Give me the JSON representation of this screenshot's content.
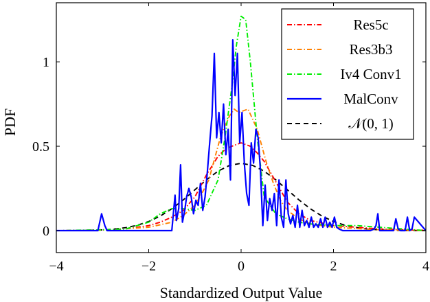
{
  "chart_data": {
    "type": "line",
    "title": "",
    "xlabel": "Standardized Output Value",
    "ylabel": "PDF",
    "xlim": [
      -4,
      4
    ],
    "ylim": [
      -0.13,
      1.35
    ],
    "xticks": [
      -4,
      -2,
      0,
      2,
      4
    ],
    "yticks": [
      0,
      0.5,
      1
    ],
    "x_tick_labels": [
      "−4",
      "−2",
      "0",
      "2",
      "4"
    ],
    "y_tick_labels": [
      "0",
      "0.5",
      "1"
    ],
    "grid": false,
    "legend_position": "top-right",
    "series": [
      {
        "name": "Res5c",
        "color": "#ff0000",
        "dash": "dashdot",
        "x": [
          -4,
          -3.5,
          -3,
          -2.5,
          -2,
          -1.75,
          -1.5,
          -1.25,
          -1,
          -0.75,
          -0.5,
          -0.35,
          -0.2,
          -0.1,
          0,
          0.1,
          0.2,
          0.35,
          0.5,
          0.75,
          1,
          1.25,
          1.5,
          2,
          2.5,
          3,
          3.5,
          4
        ],
        "y": [
          0,
          0.002,
          0.005,
          0.01,
          0.03,
          0.05,
          0.08,
          0.12,
          0.2,
          0.33,
          0.44,
          0.48,
          0.5,
          0.51,
          0.52,
          0.51,
          0.5,
          0.46,
          0.41,
          0.29,
          0.17,
          0.1,
          0.06,
          0.03,
          0.02,
          0.01,
          0.005,
          0.002
        ]
      },
      {
        "name": "Res3b3",
        "color": "#ff8000",
        "dash": "dashdot",
        "x": [
          -4,
          -3,
          -2,
          -1.5,
          -1.25,
          -1,
          -0.85,
          -0.7,
          -0.55,
          -0.45,
          -0.35,
          -0.25,
          -0.15,
          -0.05,
          0.05,
          0.15,
          0.25,
          0.35,
          0.45,
          0.55,
          0.7,
          0.85,
          1,
          1.25,
          1.5,
          2,
          3,
          4
        ],
        "y": [
          0,
          0.003,
          0.02,
          0.05,
          0.09,
          0.15,
          0.22,
          0.3,
          0.45,
          0.55,
          0.62,
          0.68,
          0.72,
          0.7,
          0.71,
          0.72,
          0.66,
          0.6,
          0.5,
          0.4,
          0.28,
          0.18,
          0.12,
          0.07,
          0.04,
          0.02,
          0.005,
          0
        ]
      },
      {
        "name": "Iv4 Conv1",
        "color": "#00ee00",
        "dash": "dashdot",
        "x": [
          -4,
          -3,
          -2.5,
          -2,
          -1.75,
          -1.5,
          -1.25,
          -1,
          -0.75,
          -0.5,
          -0.35,
          -0.2,
          -0.1,
          0,
          0.1,
          0.2,
          0.35,
          0.5,
          0.75,
          1,
          1.25,
          1.5,
          2,
          2.5,
          3,
          4
        ],
        "y": [
          0,
          0.005,
          0.01,
          0.05,
          0.1,
          0.13,
          0.13,
          0.12,
          0.15,
          0.3,
          0.55,
          0.85,
          1.1,
          1.27,
          1.25,
          1.0,
          0.55,
          0.2,
          0.1,
          0.07,
          0.05,
          0.04,
          0.03,
          0.03,
          0.02,
          0
        ]
      },
      {
        "name": "MalConv",
        "color": "#0000ff",
        "dash": "solid",
        "x": [
          -4,
          -3.1,
          -3.02,
          -2.95,
          -2.9,
          -1.5,
          -1.43,
          -1.4,
          -1.35,
          -1.31,
          -1.27,
          -1.22,
          -1.18,
          -1.13,
          -1.08,
          -1.03,
          -0.98,
          -0.93,
          -0.88,
          -0.83,
          -0.78,
          -0.73,
          -0.68,
          -0.63,
          -0.58,
          -0.53,
          -0.48,
          -0.43,
          -0.38,
          -0.33,
          -0.28,
          -0.23,
          -0.18,
          -0.13,
          -0.08,
          -0.03,
          0.02,
          0.07,
          0.12,
          0.17,
          0.22,
          0.27,
          0.32,
          0.37,
          0.42,
          0.47,
          0.52,
          0.57,
          0.62,
          0.67,
          0.72,
          0.77,
          0.82,
          0.87,
          0.92,
          0.97,
          1.02,
          1.07,
          1.12,
          1.17,
          1.22,
          1.27,
          1.32,
          1.37,
          1.42,
          1.47,
          1.52,
          1.57,
          1.62,
          1.67,
          1.72,
          1.77,
          1.82,
          1.87,
          1.92,
          1.97,
          2.02,
          2.07,
          2.12,
          2.2,
          2.8,
          2.88,
          2.92,
          2.96,
          3.0,
          3.3,
          3.35,
          3.4,
          3.45,
          3.55,
          3.6,
          3.65,
          3.7,
          3.75,
          4
        ],
        "y": [
          0,
          0,
          0.1,
          0.03,
          0,
          0,
          0.21,
          0.06,
          0.13,
          0.39,
          0.05,
          0.12,
          0.2,
          0.25,
          0.2,
          0.1,
          0.18,
          0.15,
          0.28,
          0.12,
          0.2,
          0.35,
          0.52,
          0.68,
          1.05,
          0.55,
          0.7,
          0.52,
          0.75,
          0.45,
          0.6,
          0.3,
          1.13,
          0.8,
          1.05,
          0.52,
          0.7,
          0.4,
          0.22,
          0.15,
          0.52,
          0.4,
          0.6,
          0.55,
          0.35,
          0.03,
          0.27,
          0.06,
          0.19,
          0.12,
          0.22,
          0.03,
          0.3,
          0.08,
          0.02,
          0.3,
          0.1,
          0.04,
          0.09,
          0.02,
          0.15,
          0.02,
          0.12,
          0.03,
          0.06,
          0.02,
          0.08,
          0.02,
          0.04,
          0.02,
          0.07,
          0.02,
          0.08,
          0.02,
          0.05,
          0.02,
          0.08,
          0.02,
          0.01,
          0,
          0,
          0.01,
          0.03,
          0.1,
          0,
          0,
          0.07,
          0.01,
          0,
          0,
          0.08,
          0,
          0.01,
          0.08,
          0
        ]
      },
      {
        "name": "𝒩(0, 1)",
        "color": "#000000",
        "dash": "dashed",
        "x": [
          -4,
          -3.75,
          -3.5,
          -3.25,
          -3,
          -2.75,
          -2.5,
          -2.25,
          -2,
          -1.75,
          -1.5,
          -1.25,
          -1,
          -0.75,
          -0.5,
          -0.25,
          0,
          0.25,
          0.5,
          0.75,
          1,
          1.25,
          1.5,
          1.75,
          2,
          2.25,
          2.5,
          2.75,
          3,
          3.25,
          3.5,
          3.75,
          4
        ],
        "y": [
          0.0001,
          0.0004,
          0.0009,
          0.002,
          0.0044,
          0.0091,
          0.0175,
          0.0317,
          0.054,
          0.0863,
          0.1295,
          0.1826,
          0.242,
          0.3011,
          0.3521,
          0.3867,
          0.3989,
          0.3867,
          0.3521,
          0.3011,
          0.242,
          0.1826,
          0.1295,
          0.0863,
          0.054,
          0.0317,
          0.0175,
          0.0091,
          0.0044,
          0.002,
          0.0009,
          0.0004,
          0.0001
        ]
      }
    ]
  }
}
